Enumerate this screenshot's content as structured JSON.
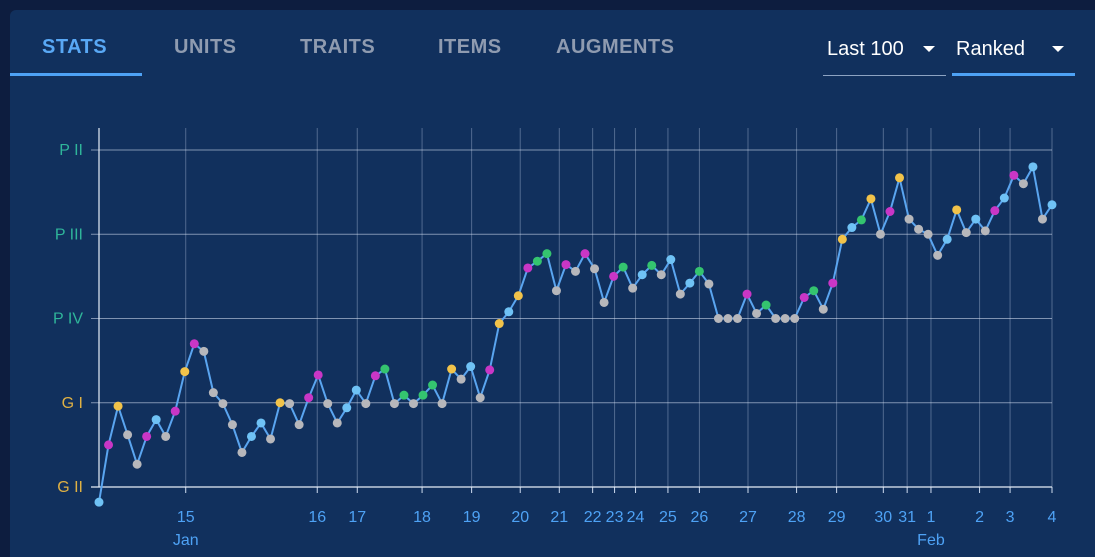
{
  "tabs": [
    {
      "label": "STATS",
      "active": true
    },
    {
      "label": "UNITS",
      "active": false
    },
    {
      "label": "TRAITS",
      "active": false
    },
    {
      "label": "ITEMS",
      "active": false
    },
    {
      "label": "AUGMENTS",
      "active": false
    }
  ],
  "filters": {
    "count": {
      "value": "Last 100"
    },
    "queue": {
      "value": "Ranked"
    }
  },
  "colors": {
    "background": "#11305d",
    "accent": "#4ea2f5",
    "line": "#5aa5f0",
    "rank_platinum": "#2fb59a",
    "rank_gold": "#e0b143",
    "placement_colors": {
      "first": "#f2c34a",
      "top2": "#c936c6",
      "top4": "#34c46f",
      "neutral": "#6fc2f5",
      "low": "#b7b7bb"
    }
  },
  "chart_data": {
    "type": "line",
    "title": "",
    "xlabel": "",
    "ylabel": "",
    "y_ticks": [
      {
        "label": "P II",
        "value": 4,
        "color": "#2fb59a"
      },
      {
        "label": "P III",
        "value": 3,
        "color": "#2fb59a"
      },
      {
        "label": "P IV",
        "value": 2,
        "color": "#2fb59a"
      },
      {
        "label": "G I",
        "value": 1,
        "color": "#e0b143"
      },
      {
        "label": "G II",
        "value": 0,
        "color": "#e0b143"
      }
    ],
    "ylim": [
      0,
      4.45
    ],
    "xlim": [
      0,
      100
    ],
    "x_ticks": [
      {
        "label": "15",
        "sub": "Jan",
        "pos": 9.1
      },
      {
        "label": "16",
        "pos": 22.9
      },
      {
        "label": "17",
        "pos": 27.1
      },
      {
        "label": "18",
        "pos": 33.9
      },
      {
        "label": "19",
        "pos": 39.1
      },
      {
        "label": "20",
        "pos": 44.2
      },
      {
        "label": "21",
        "pos": 48.3
      },
      {
        "label": "22",
        "pos": 51.8
      },
      {
        "label": "23",
        "pos": 54.1
      },
      {
        "label": "24",
        "pos": 56.3
      },
      {
        "label": "25",
        "pos": 59.7
      },
      {
        "label": "26",
        "pos": 63.0
      },
      {
        "label": "27",
        "pos": 68.1
      },
      {
        "label": "28",
        "pos": 73.2
      },
      {
        "label": "29",
        "pos": 77.4
      },
      {
        "label": "30",
        "pos": 82.3
      },
      {
        "label": "31",
        "pos": 84.8
      },
      {
        "label": "1",
        "sub": "Feb",
        "pos": 87.3
      },
      {
        "label": "2",
        "pos": 92.4
      },
      {
        "label": "3",
        "pos": 95.6
      },
      {
        "label": "4",
        "pos": 100
      }
    ],
    "series": [
      {
        "points": [
          [
            0,
            -0.18,
            "neutral"
          ],
          [
            1,
            0.5,
            "top2"
          ],
          [
            2,
            0.96,
            "first"
          ],
          [
            3,
            0.62,
            "low"
          ],
          [
            4,
            0.27,
            "low"
          ],
          [
            5,
            0.6,
            "top2"
          ],
          [
            6,
            0.8,
            "neutral"
          ],
          [
            7,
            0.6,
            "low"
          ],
          [
            8,
            0.9,
            "top2"
          ],
          [
            9,
            1.37,
            "first"
          ],
          [
            10,
            1.7,
            "top2"
          ],
          [
            11,
            1.61,
            "low"
          ],
          [
            12,
            1.12,
            "low"
          ],
          [
            13,
            0.99,
            "low"
          ],
          [
            14,
            0.74,
            "low"
          ],
          [
            15,
            0.41,
            "low"
          ],
          [
            16,
            0.6,
            "neutral"
          ],
          [
            17,
            0.76,
            "neutral"
          ],
          [
            18,
            0.57,
            "low"
          ],
          [
            19,
            1.0,
            "first"
          ],
          [
            20,
            0.99,
            "low"
          ],
          [
            21,
            0.74,
            "low"
          ],
          [
            22,
            1.06,
            "top2"
          ],
          [
            23,
            1.33,
            "top2"
          ],
          [
            24,
            0.99,
            "low"
          ],
          [
            25,
            0.76,
            "low"
          ],
          [
            26,
            0.94,
            "neutral"
          ],
          [
            27,
            1.15,
            "neutral"
          ],
          [
            28,
            0.99,
            "low"
          ],
          [
            29,
            1.32,
            "top2"
          ],
          [
            30,
            1.4,
            "top4"
          ],
          [
            31,
            0.99,
            "low"
          ],
          [
            32,
            1.09,
            "top4"
          ],
          [
            33,
            0.99,
            "low"
          ],
          [
            34,
            1.09,
            "top4"
          ],
          [
            35,
            1.21,
            "top4"
          ],
          [
            36,
            0.99,
            "low"
          ],
          [
            37,
            1.4,
            "first"
          ],
          [
            38,
            1.28,
            "low"
          ],
          [
            39,
            1.43,
            "neutral"
          ],
          [
            40,
            1.06,
            "low"
          ],
          [
            41,
            1.39,
            "top2"
          ],
          [
            42,
            1.94,
            "first"
          ],
          [
            43,
            2.08,
            "neutral"
          ],
          [
            44,
            2.27,
            "first"
          ],
          [
            45,
            2.6,
            "top2"
          ],
          [
            46,
            2.68,
            "top4"
          ],
          [
            47,
            2.77,
            "top4"
          ],
          [
            48,
            2.33,
            "low"
          ],
          [
            49,
            2.64,
            "top2"
          ],
          [
            50,
            2.56,
            "low"
          ],
          [
            51,
            2.77,
            "top2"
          ],
          [
            52,
            2.59,
            "low"
          ],
          [
            53,
            2.19,
            "low"
          ],
          [
            54,
            2.5,
            "top2"
          ],
          [
            55,
            2.61,
            "top4"
          ],
          [
            56,
            2.36,
            "low"
          ],
          [
            57,
            2.52,
            "neutral"
          ],
          [
            58,
            2.63,
            "top4"
          ],
          [
            59,
            2.52,
            "low"
          ],
          [
            60,
            2.7,
            "neutral"
          ],
          [
            61,
            2.29,
            "low"
          ],
          [
            62,
            2.42,
            "neutral"
          ],
          [
            63,
            2.56,
            "top4"
          ],
          [
            64,
            2.41,
            "low"
          ],
          [
            65,
            2.0,
            "low"
          ],
          [
            66,
            2.0,
            "low"
          ],
          [
            67,
            2.0,
            "low"
          ],
          [
            68,
            2.29,
            "top2"
          ],
          [
            69,
            2.06,
            "low"
          ],
          [
            70,
            2.16,
            "top4"
          ],
          [
            71,
            2.0,
            "low"
          ],
          [
            72,
            2.0,
            "low"
          ],
          [
            73,
            2.0,
            "low"
          ],
          [
            74,
            2.25,
            "top2"
          ],
          [
            75,
            2.33,
            "top4"
          ],
          [
            76,
            2.11,
            "low"
          ],
          [
            77,
            2.42,
            "top2"
          ],
          [
            78,
            2.94,
            "first"
          ],
          [
            79,
            3.08,
            "neutral"
          ],
          [
            80,
            3.17,
            "top4"
          ],
          [
            81,
            3.42,
            "first"
          ],
          [
            82,
            3.0,
            "low"
          ],
          [
            83,
            3.27,
            "top2"
          ],
          [
            84,
            3.67,
            "first"
          ],
          [
            85,
            3.18,
            "low"
          ],
          [
            86,
            3.06,
            "low"
          ],
          [
            87,
            3.0,
            "low"
          ],
          [
            88,
            2.75,
            "low"
          ],
          [
            89,
            2.94,
            "neutral"
          ],
          [
            90,
            3.29,
            "first"
          ],
          [
            91,
            3.02,
            "low"
          ],
          [
            92,
            3.18,
            "neutral"
          ],
          [
            93,
            3.04,
            "low"
          ],
          [
            94,
            3.28,
            "top2"
          ],
          [
            95,
            3.43,
            "neutral"
          ],
          [
            96,
            3.7,
            "top2"
          ],
          [
            97,
            3.6,
            "low"
          ],
          [
            98,
            3.8,
            "neutral"
          ],
          [
            99,
            3.18,
            "low"
          ],
          [
            100,
            3.35,
            "neutral"
          ]
        ]
      }
    ]
  }
}
